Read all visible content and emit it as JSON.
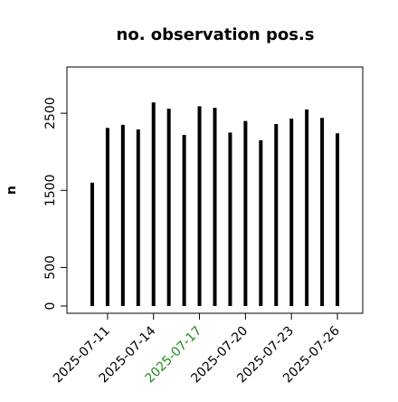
{
  "chart_data": {
    "type": "bar",
    "title": "no. observation pos.s",
    "y_label": "n",
    "x": [
      "2025-07-10",
      "2025-07-11",
      "2025-07-12",
      "2025-07-13",
      "2025-07-14",
      "2025-07-15",
      "2025-07-16",
      "2025-07-17",
      "2025-07-18",
      "2025-07-19",
      "2025-07-20",
      "2025-07-21",
      "2025-07-22",
      "2025-07-23",
      "2025-07-24",
      "2025-07-25",
      "2025-07-26"
    ],
    "values": [
      1600,
      2310,
      2350,
      2290,
      2640,
      2560,
      2220,
      2590,
      2570,
      2250,
      2400,
      2150,
      2360,
      2430,
      2550,
      2440,
      2240
    ],
    "color": "#000000",
    "xticks": [
      "2025-07-11",
      "2025-07-14",
      "2025-07-17",
      "2025-07-20",
      "2025-07-23",
      "2025-07-26"
    ],
    "xtick_colors": [
      "#000000",
      "#000000",
      "#228b22",
      "#000000",
      "#000000",
      "#000000"
    ],
    "ylim": [
      -94,
      3100
    ],
    "yticks": [
      0,
      500,
      1500,
      2500
    ]
  }
}
